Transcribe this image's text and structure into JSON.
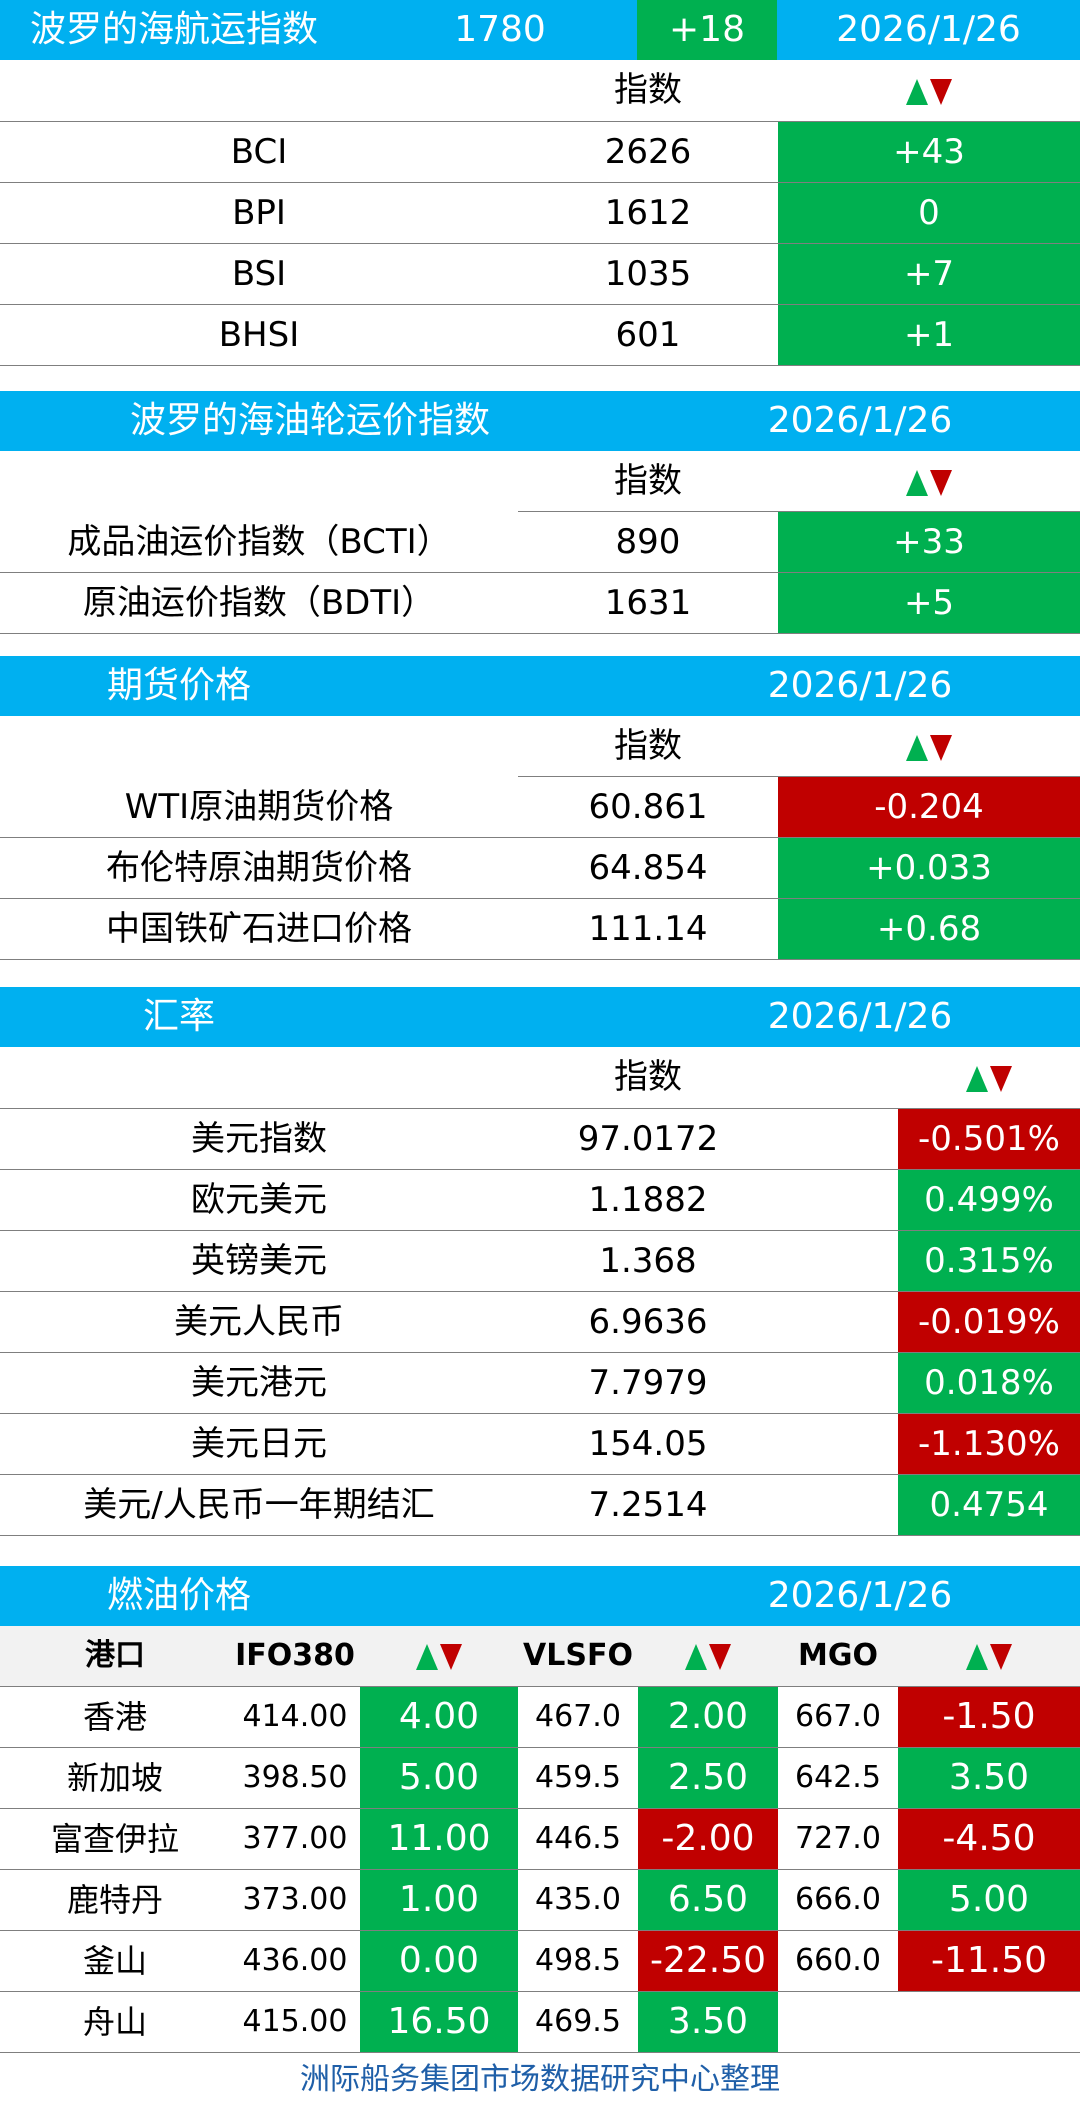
{
  "bdi": {
    "title": "波罗的海航运指数",
    "value": "1780",
    "change": "+18",
    "date": "2026/1/26",
    "col_index": "指数",
    "rows": [
      {
        "name": "BCI",
        "value": "2626",
        "change": "+43",
        "dir": "up"
      },
      {
        "name": "BPI",
        "value": "1612",
        "change": "0",
        "dir": "up"
      },
      {
        "name": "BSI",
        "value": "1035",
        "change": "+7",
        "dir": "up"
      },
      {
        "name": "BHSI",
        "value": "601",
        "change": "+1",
        "dir": "up"
      }
    ]
  },
  "tanker": {
    "title": "波罗的海油轮运价指数",
    "date": "2026/1/26",
    "col_index": "指数",
    "rows": [
      {
        "name": "成品油运价指数（BCTI）",
        "value": "890",
        "change": "+33",
        "dir": "up"
      },
      {
        "name": "原油运价指数（BDTI）",
        "value": "1631",
        "change": "+5",
        "dir": "up"
      }
    ]
  },
  "futures": {
    "title": "期货价格",
    "date": "2026/1/26",
    "col_index": "指数",
    "rows": [
      {
        "name": "WTI原油期货价格",
        "value": "60.861",
        "change": "-0.204",
        "dir": "down"
      },
      {
        "name": "布伦特原油期货价格",
        "value": "64.854",
        "change": "+0.033",
        "dir": "up"
      },
      {
        "name": "中国铁矿石进口价格",
        "value": "111.14",
        "change": "+0.68",
        "dir": "up"
      }
    ]
  },
  "fx": {
    "title": "汇率",
    "date": "2026/1/26",
    "col_index": "指数",
    "rows": [
      {
        "name": "美元指数",
        "value": "97.0172",
        "change": "-0.501%",
        "dir": "down"
      },
      {
        "name": "欧元美元",
        "value": "1.1882",
        "change": "0.499%",
        "dir": "up"
      },
      {
        "name": "英镑美元",
        "value": "1.368",
        "change": "0.315%",
        "dir": "up"
      },
      {
        "name": "美元人民币",
        "value": "6.9636",
        "change": "-0.019%",
        "dir": "down"
      },
      {
        "name": "美元港元",
        "value": "7.7979",
        "change": "0.018%",
        "dir": "up"
      },
      {
        "name": "美元日元",
        "value": "154.05",
        "change": "-1.130%",
        "dir": "down"
      },
      {
        "name": "美元/人民币一年期结汇",
        "value": "7.2514",
        "change": "0.4754",
        "dir": "up"
      }
    ]
  },
  "fuel": {
    "title": "燃油价格",
    "date": "2026/1/26",
    "headers": {
      "port": "港口",
      "ifo": "IFO380",
      "vlsfo": "VLSFO",
      "mgo": "MGO"
    },
    "rows": [
      {
        "port": "香港",
        "ifo": "414.00",
        "ifo_chg": "4.00",
        "ifo_dir": "up",
        "vlsfo": "467.0",
        "vlsfo_chg": "2.00",
        "vlsfo_dir": "up",
        "mgo": "667.0",
        "mgo_chg": "-1.50",
        "mgo_dir": "down"
      },
      {
        "port": "新加坡",
        "ifo": "398.50",
        "ifo_chg": "5.00",
        "ifo_dir": "up",
        "vlsfo": "459.5",
        "vlsfo_chg": "2.50",
        "vlsfo_dir": "up",
        "mgo": "642.5",
        "mgo_chg": "3.50",
        "mgo_dir": "up"
      },
      {
        "port": "富查伊拉",
        "ifo": "377.00",
        "ifo_chg": "11.00",
        "ifo_dir": "up",
        "vlsfo": "446.5",
        "vlsfo_chg": "-2.00",
        "vlsfo_dir": "down",
        "mgo": "727.0",
        "mgo_chg": "-4.50",
        "mgo_dir": "down"
      },
      {
        "port": "鹿特丹",
        "ifo": "373.00",
        "ifo_chg": "1.00",
        "ifo_dir": "up",
        "vlsfo": "435.0",
        "vlsfo_chg": "6.50",
        "vlsfo_dir": "up",
        "mgo": "666.0",
        "mgo_chg": "5.00",
        "mgo_dir": "up"
      },
      {
        "port": "釜山",
        "ifo": "436.00",
        "ifo_chg": "0.00",
        "ifo_dir": "up",
        "vlsfo": "498.5",
        "vlsfo_chg": "-22.50",
        "vlsfo_dir": "down",
        "mgo": "660.0",
        "mgo_chg": "-11.50",
        "mgo_dir": "down"
      },
      {
        "port": "舟山",
        "ifo": "415.00",
        "ifo_chg": "16.50",
        "ifo_dir": "up",
        "vlsfo": "469.5",
        "vlsfo_chg": "3.50",
        "vlsfo_dir": "up",
        "mgo": "",
        "mgo_chg": "",
        "mgo_dir": ""
      }
    ]
  },
  "footer": "洲际船务集团市场数据研究中心整理",
  "colors": {
    "header_blue": "#00b0f0",
    "up_green": "#00b050",
    "down_red": "#c00000",
    "footer_blue": "#1f5fa8"
  },
  "icons": {
    "updown": "up-down-arrows-icon"
  }
}
